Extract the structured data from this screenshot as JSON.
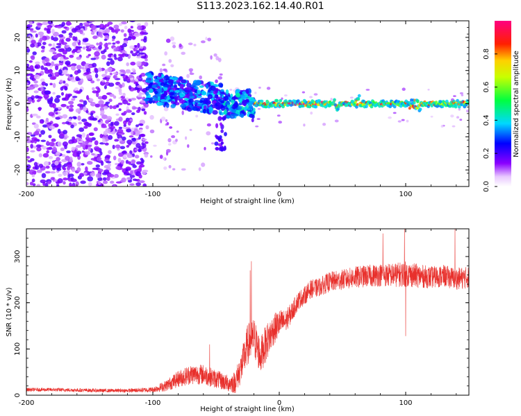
{
  "title": "S113.2023.162.14.40.R01",
  "colors": {
    "snr_line": "#e8302c",
    "axis": "#000000",
    "background": "#ffffff"
  },
  "chart_data": [
    {
      "type": "heatmap",
      "xlabel": "Height of straight line (km)",
      "ylabel": "Frequency (Hz)",
      "colorbar_label": "Normalized spectral amplitude",
      "colormap": "rainbow (white → purple → blue → cyan → green → yellow → red → pink)",
      "xlim": [
        -200,
        150
      ],
      "ylim": [
        -25,
        25
      ],
      "clim": [
        0,
        1
      ],
      "x_ticks": [
        -200,
        -100,
        0,
        100
      ],
      "y_ticks": [
        -20,
        -10,
        0,
        10,
        20
      ],
      "colorbar_ticks": [
        0.0,
        0.2,
        0.4,
        0.6,
        0.8
      ],
      "regions": [
        {
          "x": [
            -200,
            -105
          ],
          "frequency_span": [
            -25,
            25
          ],
          "level": "0.1-0.3 scattered noise"
        },
        {
          "x": [
            -105,
            -45
          ],
          "frequency_span": [
            -3,
            10
          ],
          "level": "0.3-0.5, drifting from ~+5 Hz to ~0 Hz"
        },
        {
          "x": [
            -50,
            -42
          ],
          "frequency_span": [
            -14,
            0
          ],
          "level": "0.2-0.3 tail down to ~-12 Hz"
        },
        {
          "x": [
            -45,
            -20
          ],
          "frequency_span": [
            -5,
            4
          ],
          "level": "0.3-0.5"
        },
        {
          "x": [
            -20,
            150
          ],
          "frequency_span": [
            -2,
            2
          ],
          "level": "0.6-1.0 narrow line near 0 Hz"
        }
      ]
    },
    {
      "type": "line",
      "xlabel": "Height of straight line (km)",
      "ylabel": "SNR (10 * v/v)",
      "xlim": [
        -200,
        150
      ],
      "ylim": [
        0,
        360
      ],
      "x_ticks": [
        -200,
        -100,
        0,
        100
      ],
      "y_ticks": [
        0,
        100,
        200,
        300
      ],
      "series": [
        {
          "x": [
            -200,
            -180,
            -160,
            -140,
            -120,
            -100,
            -90,
            -80,
            -70,
            -60,
            -50,
            -40,
            -35,
            -30,
            -25,
            -20,
            -15,
            -10,
            -5,
            0,
            5,
            10,
            15,
            20,
            25,
            30,
            40,
            50,
            60,
            70,
            80,
            90,
            100,
            110,
            120,
            130,
            140,
            150
          ],
          "y": [
            12,
            12,
            11,
            10,
            10,
            12,
            20,
            35,
            45,
            45,
            35,
            25,
            28,
            60,
            110,
            125,
            85,
            115,
            140,
            155,
            160,
            180,
            205,
            215,
            230,
            232,
            245,
            250,
            255,
            258,
            260,
            260,
            262,
            258,
            255,
            258,
            252,
            255
          ],
          "noise_amplitude": [
            4,
            4,
            4,
            4,
            4,
            6,
            12,
            18,
            22,
            22,
            20,
            18,
            25,
            35,
            45,
            45,
            40,
            40,
            35,
            30,
            25,
            22,
            20,
            20,
            20,
            20,
            22,
            22,
            24,
            24,
            25,
            26,
            28,
            26,
            24,
            24,
            24,
            24
          ],
          "spikes": [
            {
              "x": -22,
              "y": 290
            },
            {
              "x": -23,
              "y": 270
            },
            {
              "x": -55,
              "y": 110
            },
            {
              "x": 82,
              "y": 350
            },
            {
              "x": 99,
              "y": 360
            },
            {
              "x": 100,
              "y": 128
            },
            {
              "x": 139,
              "y": 360
            }
          ]
        }
      ]
    }
  ]
}
